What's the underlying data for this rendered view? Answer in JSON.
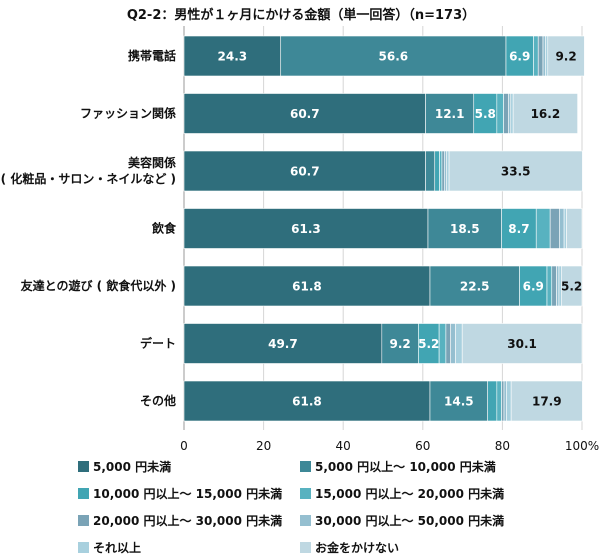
{
  "chart_data": {
    "type": "bar",
    "orientation": "horizontal",
    "stacked": true,
    "title": "Q2-2：男性が１ヶ月にかける金額（単一回答）（n=173）",
    "categories": [
      "携帯電話",
      "ファッション関係",
      "美容関係\n( 化粧品・サロン・ネイルなど )",
      "飲食",
      "友達との遊び ( 飲食代以外 )",
      "デート",
      "その他"
    ],
    "xlim": [
      0,
      100
    ],
    "xticks": [
      "0",
      "20",
      "40",
      "60",
      "80",
      "100%"
    ],
    "grid": true,
    "legend_position": "bottom",
    "series": [
      {
        "name": "5,000 円未満",
        "color": "#2f6e7c",
        "values": [
          24.3,
          60.7,
          60.7,
          61.3,
          61.8,
          49.7,
          61.8
        ]
      },
      {
        "name": "5,000 円以上～ 10,000 円未満",
        "color": "#3e8897",
        "values": [
          56.6,
          12.1,
          2.3,
          18.5,
          22.5,
          9.2,
          14.5
        ]
      },
      {
        "name": "10,000 円以上～ 15,000 円未満",
        "color": "#41a5b3",
        "values": [
          6.9,
          5.8,
          1.2,
          8.7,
          6.9,
          5.2,
          2.3
        ]
      },
      {
        "name": "15,000 円以上～ 20,000 円未満",
        "color": "#58b2c0",
        "values": [
          1.2,
          1.7,
          0.6,
          3.5,
          1.2,
          1.7,
          1.2
        ]
      },
      {
        "name": "20,000 円以上～ 30,000 円未満",
        "color": "#7aa3b6",
        "values": [
          1.2,
          1.2,
          0.6,
          2.3,
          1.2,
          1.2,
          0.6
        ]
      },
      {
        "name": "30,000 円以上～ 50,000 円未満",
        "color": "#95bfd0",
        "values": [
          0.6,
          0.6,
          0.6,
          1.2,
          0.6,
          1.2,
          0.6
        ]
      },
      {
        "name": "それ以上",
        "color": "#a8d0de",
        "values": [
          0.6,
          0.6,
          0.6,
          0.6,
          0.6,
          1.7,
          1.2
        ]
      },
      {
        "name": "お金をかけない",
        "color": "#bfd8e2",
        "values": [
          9.2,
          16.2,
          33.5,
          3.9,
          5.2,
          30.1,
          17.9
        ]
      }
    ],
    "data_labels": [
      [
        "24.3",
        "56.6",
        "6.9",
        "",
        "",
        "",
        "",
        "9.2"
      ],
      [
        "60.7",
        "12.1",
        "5.8",
        "",
        "",
        "",
        "",
        "16.2"
      ],
      [
        "60.7",
        "",
        "",
        "",
        "",
        "",
        "",
        "33.5"
      ],
      [
        "61.3",
        "18.5",
        "8.7",
        "",
        "",
        "",
        "",
        ""
      ],
      [
        "61.8",
        "22.5",
        "6.9",
        "",
        "",
        "",
        "",
        "5.2"
      ],
      [
        "49.7",
        "9.2",
        "5.2",
        "",
        "",
        "",
        "",
        "30.1"
      ],
      [
        "61.8",
        "14.5",
        "",
        "",
        "",
        "",
        "",
        "17.9"
      ]
    ]
  }
}
